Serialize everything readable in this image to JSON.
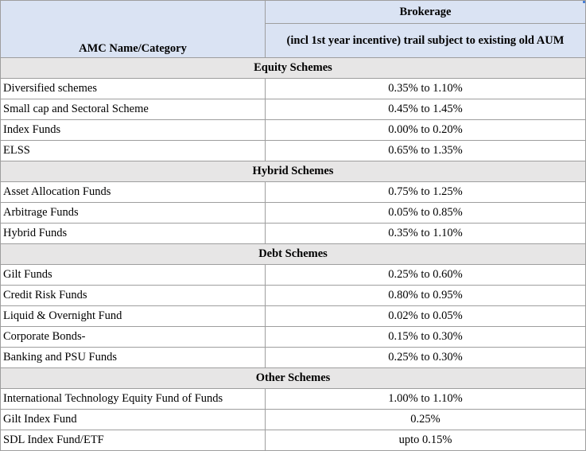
{
  "header": {
    "left_title": "AMC Name/Category",
    "brokerage_title": "Brokerage",
    "brokerage_subtitle": "(incl 1st year incentive) trail subject to existing old AUM"
  },
  "sections": [
    {
      "title": "Equity Schemes",
      "rows": [
        {
          "name": "Diversified schemes",
          "value": "0.35% to 1.10%"
        },
        {
          "name": "Small cap and Sectoral Scheme",
          "value": "0.45% to 1.45%"
        },
        {
          "name": "Index Funds",
          "value": "0.00% to 0.20%"
        },
        {
          "name": "ELSS",
          "value": "0.65% to 1.35%"
        }
      ]
    },
    {
      "title": "Hybrid Schemes",
      "rows": [
        {
          "name": "Asset Allocation Funds",
          "value": "0.75% to 1.25%"
        },
        {
          "name": "Arbitrage Funds",
          "value": "0.05% to 0.85%"
        },
        {
          "name": "Hybrid Funds",
          "value": "0.35% to 1.10%"
        }
      ]
    },
    {
      "title": "Debt Schemes",
      "rows": [
        {
          "name": "Gilt Funds",
          "value": "0.25% to 0.60%"
        },
        {
          "name": "Credit Risk Funds",
          "value": "0.80% to 0.95%"
        },
        {
          "name": "Liquid & Overnight Fund",
          "value": "0.02% to 0.05%"
        },
        {
          "name": "Corporate Bonds-",
          "value": "0.15% to 0.30%"
        },
        {
          "name": "Banking and PSU Funds",
          "value": "0.25% to 0.30%"
        }
      ]
    },
    {
      "title": "Other Schemes",
      "rows": [
        {
          "name": "International Technology Equity Fund of Funds",
          "value": "1.00% to 1.10%"
        },
        {
          "name": "Gilt Index Fund",
          "value": "0.25%"
        },
        {
          "name": "SDL Index Fund/ETF",
          "value": "upto 0.15%"
        }
      ]
    }
  ]
}
